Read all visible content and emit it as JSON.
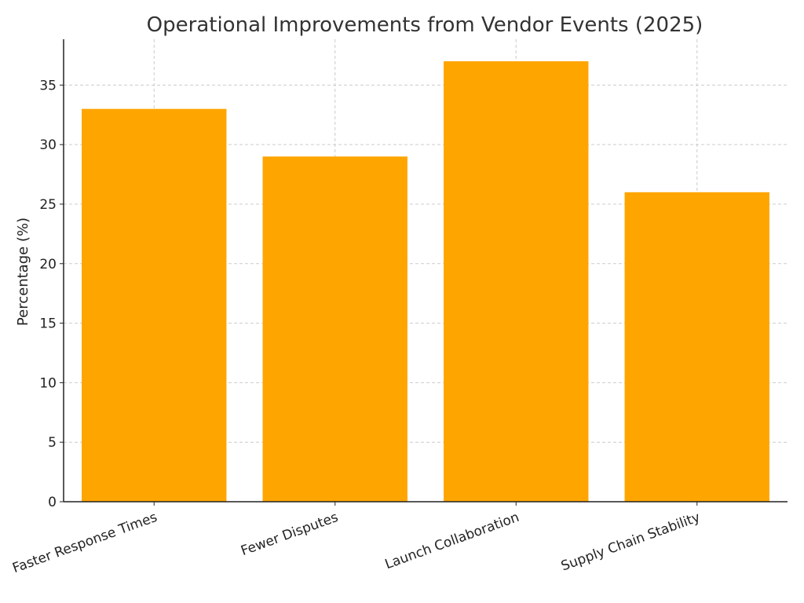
{
  "chart_data": {
    "type": "bar",
    "title": "Operational Improvements from Vendor Events (2025)",
    "xlabel": "",
    "ylabel": "Percentage (%)",
    "categories": [
      "Faster Response Times",
      "Fewer Disputes",
      "Launch Collaboration",
      "Supply Chain Stability"
    ],
    "values": [
      33,
      29,
      37,
      26
    ],
    "ylim": [
      0,
      38.85
    ],
    "yticks": [
      "0",
      "5",
      "10",
      "15",
      "20",
      "25",
      "30",
      "35"
    ],
    "bar_color": "#FFA500",
    "grid": true,
    "x_tick_rotation_deg": -20
  }
}
